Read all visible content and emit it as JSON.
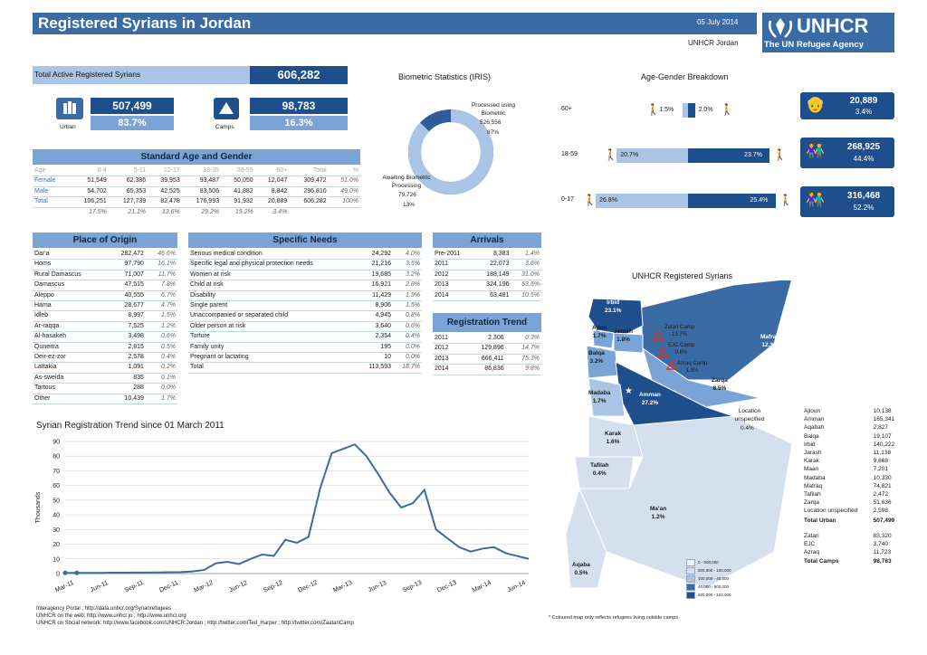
{
  "header": {
    "title": "Registered Syrians in Jordan",
    "date": "05 July 2014",
    "office": "UNHCR Jordan",
    "logo_text": "UNHCR",
    "logo_sub": "The UN Refugee Agency"
  },
  "totals": {
    "label": "Total Active Registered Syrians",
    "value": "606,282",
    "urban_value": "507,499",
    "urban_pct": "83.7%",
    "urban_label": "Urban",
    "camps_value": "98,783",
    "camps_pct": "16.3%",
    "camps_label": "Camps"
  },
  "age_gender": {
    "title": "Standard Age and Gender",
    "headers": [
      "Age",
      "0-4",
      "5-11",
      "12-17",
      "18-35",
      "36-59",
      "60+",
      "Total",
      "%"
    ],
    "rows": [
      [
        "Female",
        "51,549",
        "62,386",
        "39,953",
        "93,487",
        "50,050",
        "12,047",
        "309,472",
        "51.0%"
      ],
      [
        "Male",
        "54,702",
        "65,353",
        "42,525",
        "83,506",
        "41,882",
        "8,842",
        "296,810",
        "49.0%"
      ],
      [
        "Total",
        "106,251",
        "127,739",
        "82,478",
        "176,993",
        "91,932",
        "20,889",
        "606,282",
        "100%"
      ]
    ],
    "pcts": [
      "17.5%",
      "21.1%",
      "13.6%",
      "29.2%",
      "15.2%",
      "3.4%"
    ]
  },
  "biometric": {
    "title": "Biometric Statistics (IRIS)",
    "processed_label": "Processed using Biometric",
    "processed_value": "526,556",
    "processed_pct": "87%",
    "awaiting_label": "Awaiting Biometric Processing",
    "awaiting_value": "79,726",
    "awaiting_pct": "13%",
    "processed_fraction": 0.87
  },
  "breakdown": {
    "title": "Age-Gender Breakdown",
    "rows": [
      {
        "age": "60+",
        "male_pct": "1.5%",
        "female_pct": "2.0%",
        "male": 1.5,
        "female": 2.0,
        "total": "20,889",
        "total_pct": "3.4%"
      },
      {
        "age": "18-59",
        "male_pct": "20.7%",
        "female_pct": "23.7%",
        "male": 20.7,
        "female": 23.7,
        "total": "268,925",
        "total_pct": "44.4%"
      },
      {
        "age": "0-17",
        "male_pct": "26.8%",
        "female_pct": "25.4%",
        "male": 26.8,
        "female": 25.4,
        "total": "316,468",
        "total_pct": "52.2%"
      }
    ]
  },
  "origin": {
    "title": "Place of Origin",
    "rows": [
      [
        "Dar'a",
        "282,472",
        "46.6%"
      ],
      [
        "Homs",
        "97,790",
        "16.1%"
      ],
      [
        "Rural Damascus",
        "71,007",
        "11.7%"
      ],
      [
        "Damascus",
        "47,515",
        "7.8%"
      ],
      [
        "Aleppo",
        "40,555",
        "6.7%"
      ],
      [
        "Hama",
        "28,677",
        "4.7%"
      ],
      [
        "Idleb",
        "8,997",
        "1.5%"
      ],
      [
        "Ar-raqqa",
        "7,525",
        "1.2%"
      ],
      [
        "Al-hasakeh",
        "3,498",
        "0.6%"
      ],
      [
        "Quneitra",
        "2,815",
        "0.5%"
      ],
      [
        "Deir-ez-zor",
        "2,578",
        "0.4%"
      ],
      [
        "Lattakia",
        "1,091",
        "0.2%"
      ],
      [
        "As-sweida",
        "835",
        "0.1%"
      ],
      [
        "Tartous",
        "288",
        "0.0%"
      ],
      [
        "Other",
        "10,439",
        "1.7%"
      ]
    ]
  },
  "needs": {
    "title": "Specific Needs",
    "rows": [
      [
        "Serious medical condition",
        "24,292",
        "4.0%"
      ],
      [
        "Specific legal and physical protection needs",
        "21,216",
        "3.5%"
      ],
      [
        "Women at risk",
        "19,685",
        "3.2%"
      ],
      [
        "Child at risk",
        "16,921",
        "2.8%"
      ],
      [
        "Disability",
        "11,429",
        "1.9%"
      ],
      [
        "Single parent",
        "8,906",
        "1.5%"
      ],
      [
        "Unaccompanied or separated child",
        "4,945",
        "0.8%"
      ],
      [
        "Older person at risk",
        "3,640",
        "0.6%"
      ],
      [
        "Torture",
        "2,354",
        "0.4%"
      ],
      [
        "Family unity",
        "195",
        "0.0%"
      ],
      [
        "Pregnant or lactating",
        "10",
        "0.0%"
      ],
      [
        "Total",
        "113,593",
        "18.7%"
      ]
    ]
  },
  "arrivals": {
    "title": "Arrivals",
    "rows": [
      [
        "Pre-2011",
        "8,383",
        "1.4%"
      ],
      [
        "2011",
        "22,073",
        "3.6%"
      ],
      [
        "2012",
        "188,149",
        "31.0%"
      ],
      [
        "2013",
        "324,196",
        "53.5%"
      ],
      [
        "2014",
        "63,481",
        "10.5%"
      ]
    ]
  },
  "trend": {
    "title": "Registration Trend",
    "rows": [
      [
        "2011",
        "2,306",
        "0.3%"
      ],
      [
        "2012",
        "129,896",
        "14.7%"
      ],
      [
        "2013",
        "666,411",
        "75.3%"
      ],
      [
        "2014",
        "86,836",
        "9.8%"
      ]
    ]
  },
  "chart_data": {
    "type": "line",
    "title": "Syrian Registration Trend since  01 March 2011",
    "ylabel": "Thousands",
    "xlabel": "",
    "ylim": [
      0,
      90
    ],
    "yticks": [
      0,
      10,
      20,
      30,
      40,
      50,
      60,
      70,
      80,
      90
    ],
    "x_ticks": [
      "Mar-11",
      "Jun-11",
      "Sep-11",
      "Dec-11",
      "Mar-12",
      "Jun-12",
      "Sep-12",
      "Dec-12",
      "Mar-13",
      "Jun-13",
      "Sep-13",
      "Dec-13",
      "Mar-14",
      "Jun-14"
    ],
    "x_months": [
      0,
      3,
      6,
      9,
      12,
      15,
      18,
      21,
      24,
      27,
      30,
      33,
      36,
      39
    ],
    "x_range_months": [
      0,
      40
    ],
    "grid": true,
    "series": [
      {
        "months": [
          0,
          1,
          2,
          3,
          4,
          5,
          6,
          7,
          8,
          9,
          10,
          11,
          12,
          13,
          14,
          15,
          16,
          17,
          18,
          19,
          20,
          21,
          22,
          23,
          24,
          25,
          26,
          27,
          28,
          29,
          30,
          31,
          32,
          33,
          34,
          35,
          36,
          37,
          38,
          39,
          40
        ],
        "values": [
          0.5,
          0.5,
          0.5,
          0.5,
          0.6,
          0.6,
          0.7,
          0.7,
          0.8,
          0.9,
          1,
          1.5,
          2.5,
          7,
          8,
          6.5,
          10,
          13,
          12,
          23,
          21,
          25,
          58,
          82,
          85,
          88,
          80,
          68,
          55,
          45,
          48,
          57,
          30,
          24,
          18,
          15,
          17,
          18,
          14,
          12,
          10
        ]
      }
    ]
  },
  "map": {
    "title": "UNHCR Registered Syrians",
    "regions": [
      {
        "name": "Irbid",
        "pct": "23.1%"
      },
      {
        "name": "Ajlun",
        "pct": "1.7%"
      },
      {
        "name": "Jerash",
        "pct": "1.8%"
      },
      {
        "name": "Balqa",
        "pct": "3.2%"
      },
      {
        "name": "Madaba",
        "pct": "1.7%"
      },
      {
        "name": "Amman",
        "pct": "27.2%"
      },
      {
        "name": "Zarqa",
        "pct": "8.5%"
      },
      {
        "name": "Mafraq",
        "pct": "12.3%"
      },
      {
        "name": "Karak",
        "pct": "1.6%"
      },
      {
        "name": "Tafilah",
        "pct": "0.4%"
      },
      {
        "name": "Ma'an",
        "pct": "1.2%"
      },
      {
        "name": "Aqaba",
        "pct": "0.5%"
      }
    ],
    "camps": [
      {
        "name": "Zatari Camp",
        "pct": "13.7%"
      },
      {
        "name": "EJC Camp",
        "pct": "0.6%"
      },
      {
        "name": "Azraq Camp",
        "pct": "1.9%"
      }
    ],
    "unspecified_label": "Location unspecified",
    "unspecified_pct": "0.4%",
    "legend": [
      "0 - 500,000",
      "500,000 - 100,000",
      "100,000 - 40,000",
      "40,000 - 500,000",
      "500,000 - 163,000"
    ],
    "footnote": "* Coloured map only reflects refugees living outside camps."
  },
  "gov_list": {
    "rows": [
      [
        "Ajloun",
        "10,138"
      ],
      [
        "Amman",
        "165,341"
      ],
      [
        "Aqabah",
        "2,827"
      ],
      [
        "Balqa",
        "19,107"
      ],
      [
        "Irbid",
        "140,222"
      ],
      [
        "Jarash",
        "11,138"
      ],
      [
        "Karak",
        "9,668"
      ],
      [
        "Maan",
        "7,201"
      ],
      [
        "Madaba",
        "10,330"
      ],
      [
        "Mafraq",
        "74,821"
      ],
      [
        "Tafilah",
        "2,472"
      ],
      [
        "Zarqa",
        "51,636"
      ],
      [
        "Location unspecified",
        "2,598"
      ]
    ],
    "urban_label": "Total Urban",
    "urban_value": "507,499",
    "camps_rows": [
      [
        "Zatari",
        "83,320"
      ],
      [
        "EJC",
        "3,740"
      ],
      [
        "Azraq",
        "11,723"
      ]
    ],
    "camps_label": "Total Camps",
    "camps_value": "98,783"
  },
  "footer": {
    "line1": "Interagency Portal : http://data.unhcr.org/Syrianrefugees",
    "line2": "UNHCR on the web: http://www.unhcr.jo ; http://www.unhcr.org",
    "line3": "UNHCR on Social network: http://www.facebook.com/UNHCR.Jordan ; http://twitter.com/Ted_Harper ; http://twitter.com/ZaatariCamp"
  }
}
